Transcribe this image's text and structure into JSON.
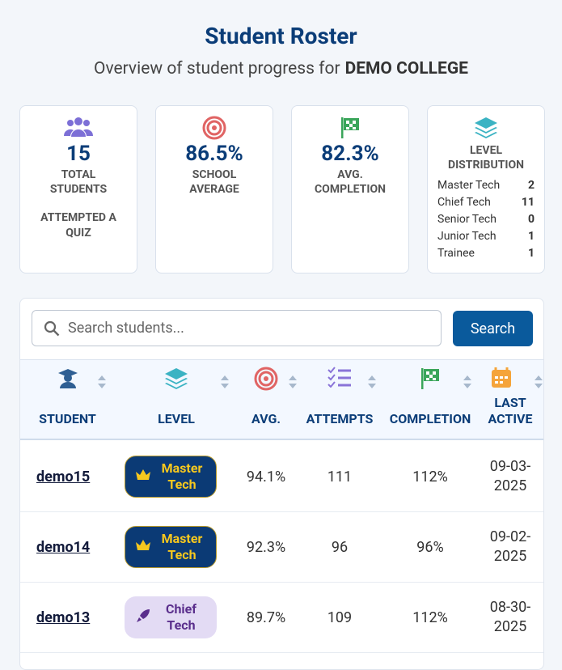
{
  "header": {
    "title": "Student Roster",
    "subtitle": "Overview of student progress for",
    "college": "DEMO COLLEGE"
  },
  "stats": [
    {
      "value": "15",
      "label": "TOTAL STUDENTS",
      "note": "ATTEMPTED A QUIZ"
    },
    {
      "value": "86.5%",
      "label": "SCHOOL AVERAGE"
    },
    {
      "value": "82.3%",
      "label": "AVG. COMPLETION"
    }
  ],
  "distribution": {
    "title": "LEVEL DISTRIBUTION",
    "levels": [
      {
        "name": "Master Tech",
        "count": 2
      },
      {
        "name": "Chief Tech",
        "count": 11
      },
      {
        "name": "Senior Tech",
        "count": 0
      },
      {
        "name": "Junior Tech",
        "count": 1
      },
      {
        "name": "Trainee",
        "count": 1
      }
    ]
  },
  "search": {
    "placeholder": "Search students...",
    "button": "Search"
  },
  "table": {
    "columns": [
      "STUDENT",
      "LEVEL",
      "AVG.",
      "ATTEMPTS",
      "COMPLETION",
      "LAST ACTIVE"
    ],
    "rows": [
      [
        "demo15",
        "Master Tech",
        "94.1%",
        "111",
        "112%",
        "09-03-2025"
      ],
      [
        "demo14",
        "Master Tech",
        "92.3%",
        "96",
        "96%",
        "09-02-2025"
      ],
      [
        "demo13",
        "Chief Tech",
        "89.7%",
        "109",
        "112%",
        "08-30-2025"
      ]
    ]
  }
}
